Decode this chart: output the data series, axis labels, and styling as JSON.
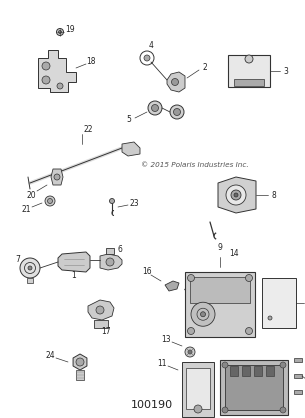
{
  "bg_color": "#ffffff",
  "line_color": "#333333",
  "text_color": "#222222",
  "copyright": "© 2015 Polaris Industries Inc.",
  "bottom_label": "100190",
  "fig_width": 3.05,
  "fig_height": 4.18,
  "dpi": 100
}
